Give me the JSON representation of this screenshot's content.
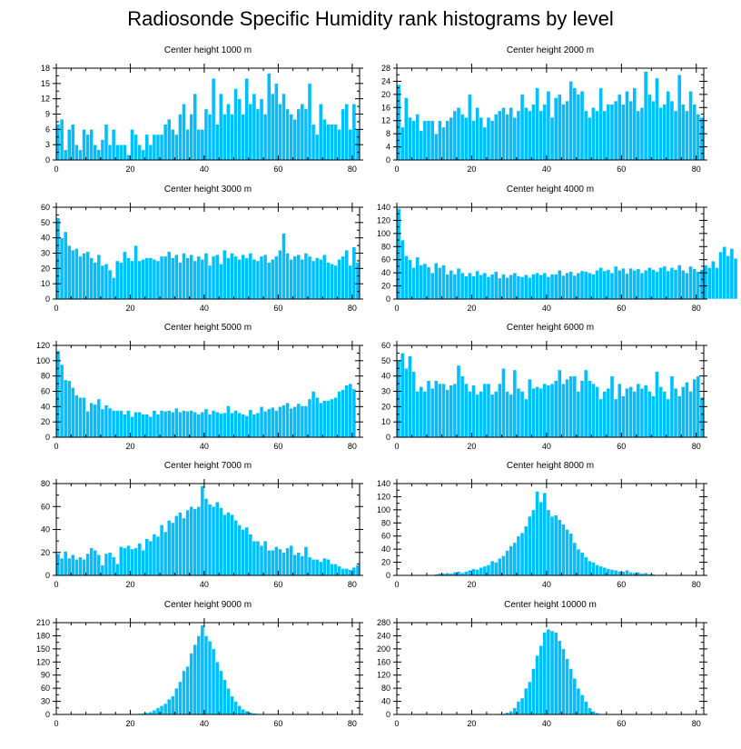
{
  "page": {
    "title": "Radiosonde Specific Humidity rank histograms by level"
  },
  "style": {
    "bar_color": "#00bfff",
    "bar_edge": "#ffffff",
    "axis_color": "#000000"
  },
  "chart_data": [
    {
      "type": "bar",
      "title": "Center height 1000 m",
      "xlabel": "",
      "ylabel": "",
      "xlim": [
        0,
        82
      ],
      "ylim": [
        0,
        18
      ],
      "xticks": [
        0,
        20,
        40,
        60,
        80
      ],
      "yticks": [
        0,
        3,
        6,
        9,
        12,
        15,
        18
      ],
      "x_start": 0,
      "values": [
        7,
        8,
        2,
        6,
        7,
        3,
        2,
        6,
        5,
        6,
        3,
        2,
        4,
        7,
        3,
        6,
        3,
        3,
        3,
        1,
        6,
        5,
        3,
        2,
        5,
        3,
        5,
        5,
        5,
        7,
        8,
        6,
        5,
        9,
        11,
        6,
        9,
        13,
        6,
        6,
        10,
        9,
        16,
        7,
        13,
        9,
        11,
        9,
        14,
        12,
        9,
        16,
        11,
        13,
        10,
        12,
        9,
        17,
        13,
        15,
        11,
        13,
        10,
        9,
        8,
        10,
        11,
        10,
        15,
        7,
        5,
        11,
        8,
        7,
        7,
        7,
        6,
        10,
        11,
        6,
        11,
        6
      ]
    },
    {
      "type": "bar",
      "title": "Center height 2000 m",
      "xlabel": "",
      "ylabel": "",
      "xlim": [
        0,
        82
      ],
      "ylim": [
        0,
        28
      ],
      "xticks": [
        0,
        20,
        40,
        60,
        80
      ],
      "yticks": [
        0,
        4,
        8,
        12,
        16,
        20,
        24,
        28
      ],
      "x_start": 0,
      "values": [
        23,
        10,
        19,
        13,
        12,
        14,
        9,
        12,
        12,
        12,
        8,
        12,
        10,
        12,
        13,
        15,
        16,
        14,
        13,
        20,
        12,
        16,
        13,
        10,
        13,
        12,
        14,
        15,
        16,
        14,
        16,
        13,
        15,
        20,
        16,
        15,
        17,
        22,
        15,
        17,
        21,
        13,
        19,
        20,
        17,
        18,
        24,
        22,
        20,
        21,
        15,
        13,
        16,
        15,
        22,
        15,
        17,
        17,
        18,
        20,
        17,
        21,
        18,
        22,
        15,
        16,
        27,
        20,
        18,
        25,
        16,
        17,
        21,
        18,
        15,
        26,
        17,
        15,
        21,
        17,
        14,
        13
      ]
    },
    {
      "type": "bar",
      "title": "Center height 3000 m",
      "xlabel": "",
      "ylabel": "",
      "xlim": [
        0,
        82
      ],
      "ylim": [
        0,
        60
      ],
      "xticks": [
        0,
        20,
        40,
        60,
        80
      ],
      "yticks": [
        0,
        10,
        20,
        30,
        40,
        50,
        60
      ],
      "x_start": 0,
      "values": [
        53,
        40,
        44,
        35,
        32,
        33,
        28,
        30,
        31,
        27,
        24,
        29,
        22,
        23,
        19,
        14,
        25,
        24,
        31,
        27,
        25,
        35,
        25,
        26,
        27,
        27,
        26,
        25,
        28,
        28,
        31,
        27,
        29,
        24,
        30,
        27,
        29,
        25,
        28,
        26,
        30,
        22,
        28,
        29,
        23,
        32,
        27,
        30,
        28,
        26,
        29,
        27,
        30,
        26,
        25,
        28,
        29,
        24,
        26,
        28,
        32,
        43,
        30,
        26,
        28,
        29,
        26,
        30,
        28,
        25,
        27,
        26,
        29,
        24,
        23,
        22,
        26,
        28,
        32,
        22,
        34,
        24
      ]
    },
    {
      "type": "bar",
      "title": "Center height 4000 m",
      "xlabel": "",
      "ylabel": "",
      "xlim": [
        0,
        82
      ],
      "ylim": [
        0,
        140
      ],
      "xticks": [
        0,
        20,
        40,
        60,
        80
      ],
      "yticks": [
        0,
        20,
        40,
        60,
        80,
        100,
        120,
        140
      ],
      "x_start": 0,
      "values": [
        138,
        90,
        66,
        60,
        48,
        64,
        52,
        54,
        49,
        40,
        55,
        48,
        52,
        38,
        44,
        38,
        47,
        40,
        35,
        40,
        35,
        43,
        37,
        40,
        34,
        38,
        42,
        32,
        38,
        33,
        37,
        40,
        35,
        34,
        37,
        33,
        38,
        40,
        37,
        40,
        34,
        38,
        38,
        44,
        36,
        40,
        42,
        36,
        40,
        43,
        42,
        40,
        38,
        44,
        48,
        43,
        45,
        40,
        50,
        44,
        47,
        39,
        47,
        44,
        46,
        40,
        44,
        48,
        45,
        42,
        48,
        50,
        43,
        48,
        45,
        52,
        44,
        40,
        50,
        46,
        42,
        45,
        52,
        48,
        58,
        48,
        72,
        80,
        66,
        77,
        62
      ]
    },
    {
      "type": "bar",
      "title": "Center height 5000 m",
      "xlabel": "",
      "ylabel": "",
      "xlim": [
        0,
        82
      ],
      "ylim": [
        0,
        120
      ],
      "xticks": [
        0,
        20,
        40,
        60,
        80
      ],
      "yticks": [
        0,
        20,
        40,
        60,
        80,
        100,
        120
      ],
      "x_start": 0,
      "values": [
        113,
        95,
        75,
        74,
        65,
        55,
        52,
        52,
        34,
        45,
        43,
        50,
        37,
        42,
        38,
        35,
        35,
        35,
        30,
        35,
        27,
        33,
        33,
        30,
        30,
        27,
        35,
        30,
        35,
        34,
        35,
        33,
        38,
        33,
        35,
        34,
        35,
        33,
        30,
        33,
        37,
        30,
        35,
        33,
        31,
        32,
        41,
        32,
        35,
        32,
        30,
        28,
        36,
        30,
        32,
        40,
        34,
        37,
        39,
        35,
        40,
        42,
        45,
        38,
        40,
        44,
        41,
        41,
        50,
        60,
        52,
        45,
        48,
        48,
        50,
        52,
        60,
        62,
        68,
        70,
        63
      ]
    },
    {
      "type": "bar",
      "title": "Center height 6000 m",
      "xlabel": "",
      "ylabel": "",
      "xlim": [
        0,
        82
      ],
      "ylim": [
        0,
        60
      ],
      "xticks": [
        0,
        20,
        40,
        60,
        80
      ],
      "yticks": [
        0,
        10,
        20,
        30,
        40,
        50,
        60
      ],
      "x_start": 0,
      "values": [
        50,
        55,
        45,
        53,
        43,
        30,
        33,
        30,
        37,
        32,
        37,
        35,
        35,
        31,
        34,
        35,
        47,
        40,
        35,
        30,
        34,
        28,
        30,
        35,
        35,
        28,
        30,
        35,
        45,
        30,
        28,
        44,
        32,
        30,
        25,
        38,
        32,
        33,
        32,
        35,
        34,
        35,
        37,
        44,
        35,
        38,
        40,
        40,
        30,
        37,
        44,
        37,
        35,
        33,
        25,
        30,
        32,
        40,
        25,
        35,
        27,
        32,
        33,
        30,
        35,
        32,
        34,
        30,
        27,
        43,
        33,
        30,
        25,
        40,
        32,
        27,
        33,
        36,
        30,
        38,
        40,
        26
      ]
    },
    {
      "type": "bar",
      "title": "Center height 7000 m",
      "xlabel": "",
      "ylabel": "",
      "xlim": [
        0,
        82
      ],
      "ylim": [
        0,
        80
      ],
      "xticks": [
        0,
        20,
        40,
        60,
        80
      ],
      "yticks": [
        0,
        20,
        40,
        60,
        80
      ],
      "x_start": 0,
      "values": [
        19,
        15,
        21,
        15,
        18,
        14,
        16,
        14,
        19,
        24,
        22,
        18,
        9,
        19,
        20,
        16,
        10,
        25,
        24,
        26,
        23,
        24,
        28,
        22,
        32,
        30,
        36,
        34,
        44,
        38,
        48,
        46,
        52,
        55,
        50,
        57,
        60,
        58,
        60,
        78,
        67,
        62,
        60,
        64,
        59,
        53,
        55,
        53,
        48,
        44,
        40,
        42,
        36,
        30,
        30,
        26,
        30,
        22,
        22,
        25,
        23,
        20,
        24,
        26,
        18,
        20,
        17,
        25,
        16,
        14,
        14,
        12,
        15,
        14,
        10,
        10,
        8,
        6,
        6,
        5,
        7,
        9
      ]
    },
    {
      "type": "bar",
      "title": "Center height 8000 m",
      "xlabel": "",
      "ylabel": "",
      "xlim": [
        0,
        82
      ],
      "ylim": [
        0,
        140
      ],
      "xticks": [
        0,
        20,
        40,
        60,
        80
      ],
      "yticks": [
        0,
        20,
        40,
        60,
        80,
        100,
        120,
        140
      ],
      "x_start": 0,
      "values": [
        0,
        0,
        0,
        0,
        0,
        0,
        0,
        0,
        0,
        0,
        2,
        3,
        3,
        4,
        3,
        5,
        6,
        4,
        6,
        8,
        10,
        9,
        12,
        14,
        16,
        22,
        20,
        26,
        30,
        38,
        45,
        50,
        60,
        65,
        75,
        90,
        100,
        128,
        112,
        126,
        100,
        90,
        92,
        85,
        78,
        70,
        64,
        50,
        40,
        35,
        28,
        22,
        20,
        16,
        14,
        12,
        10,
        9,
        8,
        6,
        6,
        8,
        5,
        4,
        5,
        3,
        4,
        2,
        2,
        1,
        1,
        0,
        0,
        0,
        0,
        0,
        0,
        0,
        0,
        0,
        0,
        0
      ]
    },
    {
      "type": "bar",
      "title": "Center height 9000 m",
      "xlabel": "",
      "ylabel": "",
      "xlim": [
        0,
        82
      ],
      "ylim": [
        0,
        210
      ],
      "xticks": [
        0,
        20,
        40,
        60,
        80
      ],
      "yticks": [
        0,
        30,
        60,
        90,
        120,
        150,
        180,
        210
      ],
      "x_start": 0,
      "values": [
        0,
        0,
        0,
        0,
        0,
        0,
        0,
        0,
        0,
        0,
        0,
        0,
        0,
        0,
        0,
        0,
        0,
        0,
        0,
        0,
        1,
        1,
        2,
        3,
        4,
        6,
        10,
        15,
        20,
        25,
        35,
        42,
        60,
        75,
        100,
        110,
        140,
        160,
        180,
        204,
        180,
        168,
        150,
        120,
        100,
        80,
        60,
        42,
        30,
        20,
        12,
        8,
        5,
        3,
        2,
        1,
        1,
        0,
        0,
        0,
        0,
        0,
        0,
        0,
        0,
        0,
        0,
        0,
        0,
        0,
        0,
        0,
        0,
        0,
        0,
        0,
        0,
        0,
        0,
        0,
        0,
        0
      ]
    },
    {
      "type": "bar",
      "title": "Center height 10000 m",
      "xlabel": "",
      "ylabel": "",
      "xlim": [
        0,
        82
      ],
      "ylim": [
        0,
        280
      ],
      "xticks": [
        0,
        20,
        40,
        60,
        80
      ],
      "yticks": [
        0,
        40,
        80,
        120,
        160,
        200,
        240,
        280
      ],
      "x_start": 0,
      "values": [
        0,
        0,
        0,
        0,
        0,
        0,
        0,
        0,
        0,
        0,
        0,
        0,
        0,
        0,
        0,
        0,
        0,
        0,
        0,
        0,
        0,
        0,
        0,
        0,
        0,
        0,
        1,
        2,
        3,
        6,
        10,
        20,
        40,
        50,
        80,
        100,
        140,
        180,
        210,
        250,
        260,
        255,
        250,
        225,
        200,
        170,
        140,
        110,
        80,
        60,
        40,
        20,
        10,
        5,
        2,
        1,
        0,
        0,
        0,
        0,
        0,
        0,
        0,
        0,
        0,
        0,
        0,
        0,
        0,
        0,
        0,
        0,
        0,
        0,
        0,
        0,
        0,
        0,
        0,
        0,
        0,
        0
      ]
    }
  ]
}
